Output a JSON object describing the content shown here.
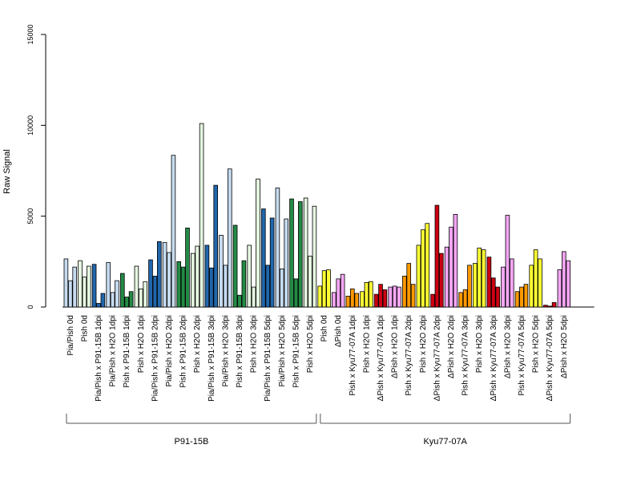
{
  "chart_data": {
    "type": "bar",
    "ylabel": "Raw Signal",
    "ylim": [
      0,
      15000
    ],
    "yticks": [
      0,
      5000,
      10000,
      15000
    ],
    "bars_per_category": 3,
    "categories": [
      {
        "label": "Pia/Pish 0d",
        "values": [
          2650,
          1450,
          2200
        ],
        "color": "#c6dbef",
        "group": 0
      },
      {
        "label": "Pish 0d",
        "values": [
          2550,
          1650,
          2250
        ],
        "color": "#e5f5e0",
        "group": 0
      },
      {
        "label": "Pia/Pish x P91-15B 1dpi",
        "values": [
          2350,
          200,
          750
        ],
        "color": "#2166ac",
        "group": 0
      },
      {
        "label": "Pia/Pish x H2O 1dpi",
        "values": [
          2450,
          800,
          1450
        ],
        "color": "#c6dbef",
        "group": 0
      },
      {
        "label": "Pish x P91-15B 1dpi",
        "values": [
          1850,
          550,
          850
        ],
        "color": "#238b45",
        "group": 0
      },
      {
        "label": "Pish x H2O 1dpi",
        "values": [
          2250,
          1000,
          1400
        ],
        "color": "#e5f5e0",
        "group": 0
      },
      {
        "label": "Pia/Pish x P91-15B 2dpi",
        "values": [
          2600,
          1700,
          3600
        ],
        "color": "#2166ac",
        "group": 0
      },
      {
        "label": "Pia/Pish x H2O 2dpi",
        "values": [
          3550,
          3000,
          8350
        ],
        "color": "#c6dbef",
        "group": 0
      },
      {
        "label": "Pish x P91-15B 2dpi",
        "values": [
          2500,
          2200,
          4350
        ],
        "color": "#238b45",
        "group": 0
      },
      {
        "label": "Pish x H2O 2dpi",
        "values": [
          2950,
          3350,
          10100
        ],
        "color": "#e5f5e0",
        "group": 0
      },
      {
        "label": "Pia/Pish x P91-15B 3dpi",
        "values": [
          3400,
          2150,
          6700
        ],
        "color": "#2166ac",
        "group": 0
      },
      {
        "label": "Pia/Pish x H2O 3dpi",
        "values": [
          3950,
          2300,
          7600
        ],
        "color": "#c6dbef",
        "group": 0
      },
      {
        "label": "Pish x P91-15B 3dpi",
        "values": [
          4500,
          650,
          2550
        ],
        "color": "#238b45",
        "group": 0
      },
      {
        "label": "Pish x H2O 3dpi",
        "values": [
          3400,
          1100,
          7050
        ],
        "color": "#e5f5e0",
        "group": 0
      },
      {
        "label": "Pia/Pish x P91-15B 5dpi",
        "values": [
          5400,
          2300,
          4900
        ],
        "color": "#2166ac",
        "group": 0
      },
      {
        "label": "Pia/Pish x H2O 5dpi",
        "values": [
          6550,
          2100,
          4850
        ],
        "color": "#c6dbef",
        "group": 0
      },
      {
        "label": "Pish x P91-15B 5dpi",
        "values": [
          5950,
          1550,
          5800
        ],
        "color": "#238b45",
        "group": 0
      },
      {
        "label": "Pish x H2O 5dpi",
        "values": [
          6000,
          2800,
          5550
        ],
        "color": "#e5f5e0",
        "group": 0
      },
      {
        "label": "Pish 0d",
        "values": [
          1150,
          2000,
          2050
        ],
        "color": "#ffff33",
        "group": 1
      },
      {
        "label": "ΔPish 0d",
        "values": [
          800,
          1550,
          1800
        ],
        "color": "#f4a6f4",
        "group": 1
      },
      {
        "label": "Pish x Kyu77-07A 1dpi",
        "values": [
          600,
          1000,
          750
        ],
        "color": "#ff9900",
        "group": 1
      },
      {
        "label": "Pish x H2O 1dpi",
        "values": [
          850,
          1350,
          1400
        ],
        "color": "#ffff33",
        "group": 1
      },
      {
        "label": "ΔPish x Kyu77-07A 1dpi",
        "values": [
          700,
          1250,
          950
        ],
        "color": "#cc0011",
        "group": 1
      },
      {
        "label": "ΔPish x H2O 1dpi",
        "values": [
          1100,
          1150,
          1100
        ],
        "color": "#f4a6f4",
        "group": 1
      },
      {
        "label": "Pish x Kyu77-07A 2dpi",
        "values": [
          1700,
          2400,
          1250
        ],
        "color": "#ff9900",
        "group": 1
      },
      {
        "label": "Pish x H2O 2dpi",
        "values": [
          3400,
          4250,
          4600
        ],
        "color": "#ffff33",
        "group": 1
      },
      {
        "label": "ΔPish x Kyu77-07A 2dpi",
        "values": [
          700,
          5600,
          2950
        ],
        "color": "#cc0011",
        "group": 1
      },
      {
        "label": "ΔPish x H2O 2dpi",
        "values": [
          3300,
          4400,
          5100
        ],
        "color": "#f4a6f4",
        "group": 1
      },
      {
        "label": "Pish x Kyu77-07A 3dpi",
        "values": [
          800,
          950,
          2300
        ],
        "color": "#ff9900",
        "group": 1
      },
      {
        "label": "Pish x H2O 3dpi",
        "values": [
          2400,
          3250,
          3150
        ],
        "color": "#ffff33",
        "group": 1
      },
      {
        "label": "ΔPish x Kyu77-07A 3dpi",
        "values": [
          2750,
          1600,
          1100
        ],
        "color": "#cc0011",
        "group": 1
      },
      {
        "label": "ΔPish x H2O 3dpi",
        "values": [
          2200,
          5050,
          2650
        ],
        "color": "#f4a6f4",
        "group": 1
      },
      {
        "label": "Pish x Kyu77-07A 5dpi",
        "values": [
          850,
          1100,
          1250
        ],
        "color": "#ff9900",
        "group": 1
      },
      {
        "label": "Pish x H2O 5dpi",
        "values": [
          2300,
          3150,
          2650
        ],
        "color": "#ffff33",
        "group": 1
      },
      {
        "label": "ΔPish x Kyu77-07A 5dpi",
        "values": [
          100,
          50,
          250
        ],
        "color": "#cc0011",
        "group": 1
      },
      {
        "label": "ΔPish x H2O 5dpi",
        "values": [
          2050,
          3050,
          2550
        ],
        "color": "#f4a6f4",
        "group": 1
      }
    ],
    "groups": [
      {
        "label": "P91-15B",
        "first": 0,
        "last": 17
      },
      {
        "label": "Kyu77-07A",
        "first": 18,
        "last": 35
      }
    ]
  }
}
